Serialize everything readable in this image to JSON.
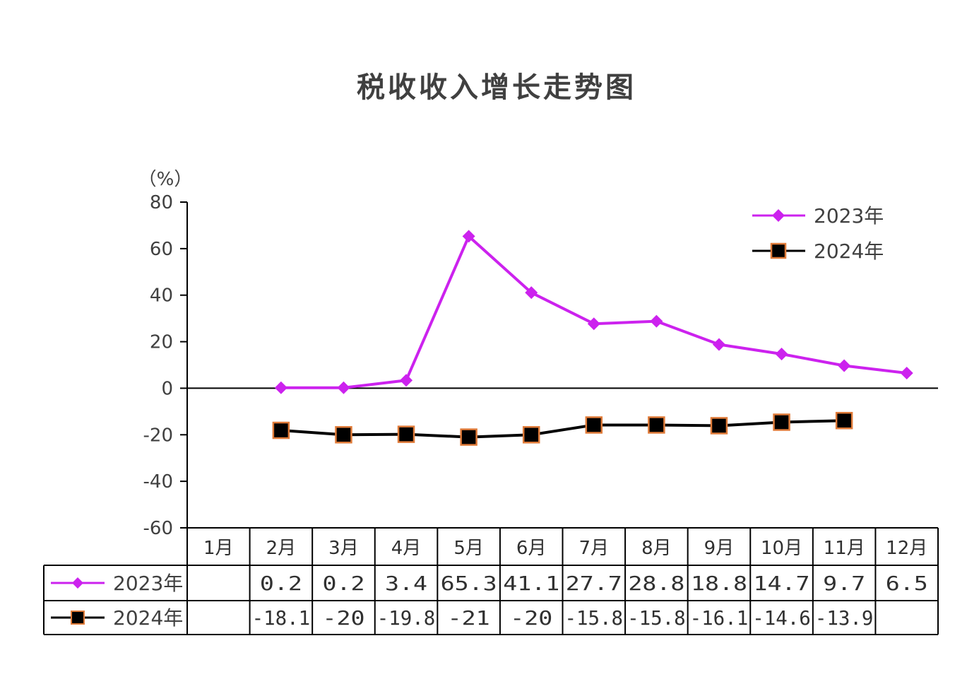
{
  "chart_data": {
    "type": "line",
    "title": "税收收入增长走势图",
    "unit_label": "（%）",
    "ylim": [
      -60,
      80
    ],
    "yticks": [
      "80",
      "60",
      "40",
      "20",
      "0",
      "-20",
      "-40",
      "-60"
    ],
    "ytick_values": [
      80,
      60,
      40,
      20,
      0,
      -20,
      -40,
      -60
    ],
    "categories": [
      "1月",
      "2月",
      "3月",
      "4月",
      "5月",
      "6月",
      "7月",
      "8月",
      "9月",
      "10月",
      "11月",
      "12月"
    ],
    "series": [
      {
        "name": "2023年",
        "color": "#cc22ee",
        "marker": "diamond",
        "values": [
          null,
          0.2,
          0.2,
          3.4,
          65.3,
          41.1,
          27.7,
          28.8,
          18.8,
          14.7,
          9.7,
          6.5
        ],
        "labels": [
          "",
          "0.2",
          "0.2",
          "3.4",
          "65.3",
          "41.1",
          "27.7",
          "28.8",
          "18.8",
          "14.7",
          "9.7",
          "6.5"
        ]
      },
      {
        "name": "2024年",
        "color": "#000000",
        "marker_edge": "#e07b39",
        "marker": "square",
        "values": [
          null,
          -18.1,
          -20,
          -19.8,
          -21,
          -20,
          -15.8,
          -15.8,
          -16.1,
          -14.6,
          -13.9,
          null
        ],
        "labels": [
          "",
          "-18.1",
          "-20",
          "-19.8",
          "-21",
          "-20",
          "-15.8",
          "-15.8",
          "-16.1",
          "-14.6",
          "-13.9",
          ""
        ]
      }
    ],
    "legend_position": "top-right",
    "grid": false
  }
}
